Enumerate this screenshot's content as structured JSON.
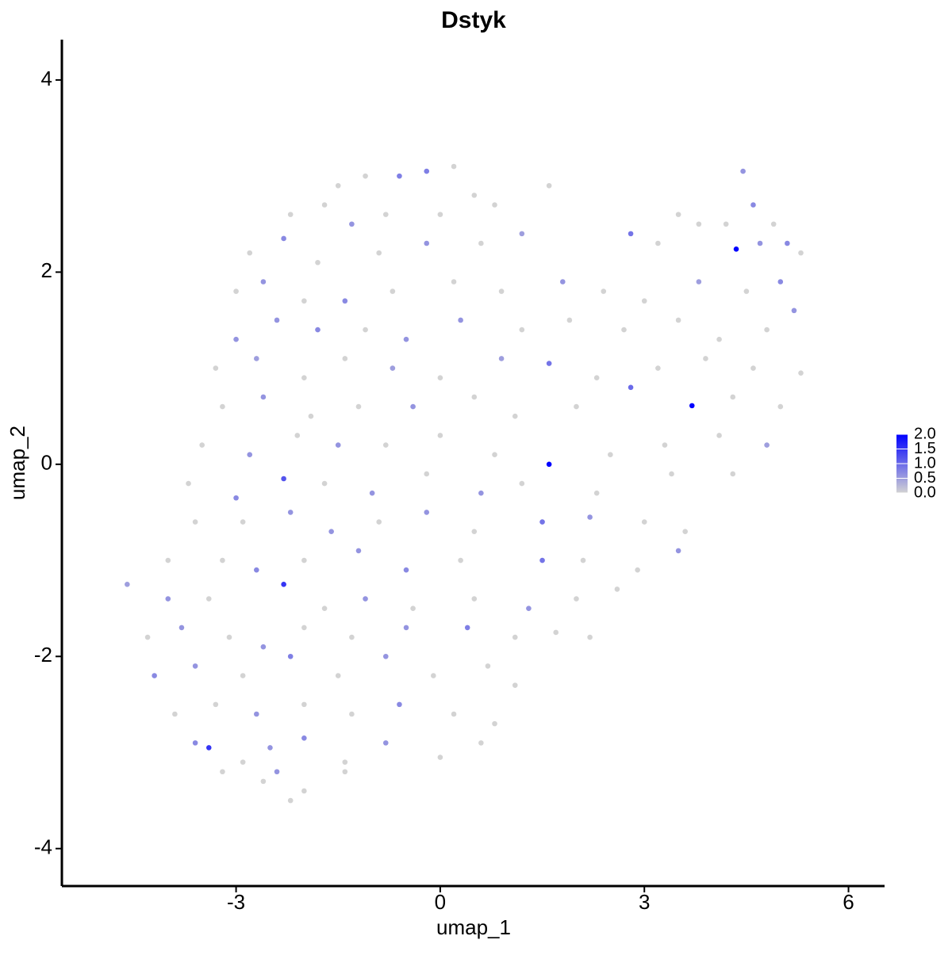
{
  "chart_data": {
    "type": "scatter",
    "title": "Dstyk",
    "x_label": "umap_1",
    "y_label": "umap_2",
    "xlim": [
      -5.56,
      6.53
    ],
    "ylim": [
      -4.39,
      4.42
    ],
    "xticks": [
      -3,
      0,
      3,
      6
    ],
    "yticks": [
      -4,
      -2,
      0,
      2,
      4
    ],
    "color_scale": {
      "low": "#d3d3d3",
      "high": "#0000ff",
      "limits": [
        0,
        2
      ],
      "ticks": [
        {
          "value": 0,
          "label": "0.0"
        },
        {
          "value": 0.5,
          "label": "0.5"
        },
        {
          "value": 1,
          "label": "1.0"
        },
        {
          "value": 1.5,
          "label": "1.5"
        },
        {
          "value": 2,
          "label": "2.0"
        }
      ]
    },
    "x": [
      -1.1,
      -0.6,
      -0.2,
      0.2,
      0.5,
      -1.5,
      4.45,
      -2.2,
      -1.7,
      -1.3,
      -0.8,
      0,
      0.8,
      1.6,
      3.5,
      4.2,
      4.6,
      4.9,
      -2.8,
      -2.3,
      -1.8,
      -0.9,
      -0.2,
      0.6,
      1.2,
      2.8,
      3.2,
      3.8,
      4.35,
      4.7,
      5.1,
      5.3,
      -3.0,
      -2.6,
      -2.0,
      -1.4,
      -0.7,
      0.2,
      0.9,
      1.8,
      2.4,
      3.0,
      3.8,
      4.5,
      5.0,
      -3.0,
      -2.4,
      -1.8,
      -1.1,
      -0.5,
      0.3,
      1.2,
      1.9,
      2.7,
      3.5,
      4.1,
      4.8,
      5.2,
      -3.3,
      -2.7,
      -2.0,
      -1.4,
      -0.7,
      0,
      0.9,
      1.6,
      2.3,
      3.2,
      3.9,
      4.6,
      5.3,
      -3.2,
      -2.6,
      -1.9,
      -1.2,
      -0.4,
      0.5,
      1.1,
      2.0,
      2.8,
      3.7,
      4.3,
      5.0,
      -3.5,
      -2.8,
      -2.1,
      -1.5,
      -0.8,
      0,
      0.8,
      1.6,
      2.5,
      3.3,
      4.1,
      4.8,
      -3.7,
      -3.0,
      -2.3,
      -1.7,
      -1.0,
      -0.2,
      0.6,
      1.2,
      2.3,
      3.4,
      4.3,
      -3.6,
      -2.9,
      -2.2,
      -1.6,
      -0.9,
      -0.2,
      0.5,
      1.5,
      2.2,
      3.0,
      3.6,
      -4.0,
      -3.2,
      -2.7,
      -2.0,
      -1.2,
      -0.5,
      0.3,
      1.5,
      2.1,
      2.9,
      3.5,
      -4.6,
      -4.0,
      -3.4,
      -2.3,
      -1.7,
      -1.1,
      -0.4,
      0.5,
      1.3,
      2.0,
      2.6,
      -4.3,
      -3.8,
      -3.1,
      -2.6,
      -2.0,
      -1.3,
      -0.5,
      0.4,
      1.1,
      1.7,
      2.2,
      -4.2,
      -3.6,
      -2.9,
      -2.2,
      -1.5,
      -0.8,
      -0.1,
      0.7,
      1.1,
      -3.9,
      -3.3,
      -2.7,
      -2.0,
      -1.3,
      -0.6,
      0.2,
      0.8,
      -3.6,
      -3.4,
      -2.9,
      -2.5,
      -2.0,
      -1.4,
      -0.8,
      0,
      0.6,
      -3.2,
      -2.6,
      -2.2,
      -2.0,
      -1.4,
      -2.4
    ],
    "y": [
      3.0,
      3.0,
      3.05,
      3.1,
      2.8,
      2.9,
      3.05,
      2.6,
      2.7,
      2.5,
      2.6,
      2.6,
      2.7,
      2.9,
      2.6,
      2.5,
      2.7,
      2.5,
      2.2,
      2.35,
      2.1,
      2.2,
      2.3,
      2.3,
      2.4,
      2.4,
      2.3,
      2.5,
      2.24,
      2.3,
      2.3,
      2.2,
      1.8,
      1.9,
      1.7,
      1.7,
      1.8,
      1.9,
      1.8,
      1.9,
      1.8,
      1.7,
      1.9,
      1.8,
      1.9,
      1.3,
      1.5,
      1.4,
      1.4,
      1.3,
      1.5,
      1.4,
      1.5,
      1.4,
      1.5,
      1.3,
      1.4,
      1.6,
      1.0,
      1.1,
      0.9,
      1.1,
      1.0,
      0.9,
      1.1,
      1.05,
      0.9,
      1.0,
      1.1,
      1.0,
      0.95,
      0.6,
      0.7,
      0.5,
      0.6,
      0.6,
      0.7,
      0.5,
      0.6,
      0.8,
      0.61,
      0.7,
      0.6,
      0.2,
      0.1,
      0.3,
      0.2,
      0.2,
      0.3,
      0.1,
      0.0,
      0.1,
      0.2,
      0.3,
      0.2,
      -0.2,
      -0.35,
      -0.15,
      -0.2,
      -0.3,
      -0.1,
      -0.3,
      -0.2,
      -0.3,
      -0.1,
      -0.1,
      -0.6,
      -0.6,
      -0.5,
      -0.7,
      -0.6,
      -0.5,
      -0.7,
      -0.6,
      -0.55,
      -0.6,
      -0.7,
      -1.0,
      -1.0,
      -1.1,
      -1.0,
      -0.9,
      -1.1,
      -1.0,
      -1.0,
      -1.0,
      -1.1,
      -0.9,
      -1.25,
      -1.4,
      -1.4,
      -1.25,
      -1.5,
      -1.4,
      -1.5,
      -1.4,
      -1.5,
      -1.4,
      -1.3,
      -1.8,
      -1.7,
      -1.8,
      -1.9,
      -1.7,
      -1.8,
      -1.7,
      -1.7,
      -1.8,
      -1.75,
      -1.8,
      -2.2,
      -2.1,
      -2.2,
      -2.0,
      -2.2,
      -2.0,
      -2.2,
      -2.1,
      -2.3,
      -2.6,
      -2.5,
      -2.6,
      -2.5,
      -2.6,
      -2.5,
      -2.6,
      -2.7,
      -2.9,
      -2.95,
      -3.1,
      -2.95,
      -2.85,
      -3.1,
      -2.9,
      -3.05,
      -2.9,
      -3.2,
      -3.3,
      -3.5,
      -3.4,
      -3.2,
      -3.2
    ],
    "values": [
      0,
      0.8,
      0.8,
      0,
      0,
      0,
      0.6,
      0,
      0,
      0.6,
      0,
      0,
      0,
      0,
      0,
      0,
      0.7,
      0,
      0,
      0.7,
      0,
      0,
      0.6,
      0,
      0.5,
      0.9,
      0,
      0,
      2.0,
      0.6,
      0.7,
      0,
      0,
      0.6,
      0,
      0.7,
      0,
      0,
      0,
      0.6,
      0,
      0,
      0.5,
      0,
      0.7,
      0.6,
      0.6,
      0.7,
      0,
      0.6,
      0.6,
      0,
      0,
      0,
      0,
      0,
      0,
      0.6,
      0,
      0.5,
      0,
      0,
      0.5,
      0,
      0.5,
      0.9,
      0,
      0,
      0,
      0,
      0,
      0,
      0.6,
      0,
      0,
      0.6,
      0,
      0,
      0,
      1.0,
      2.0,
      0,
      0,
      0,
      0.6,
      0,
      0.6,
      0,
      0,
      0,
      2.0,
      0,
      0,
      0,
      0.5,
      0,
      0.7,
      1.2,
      0,
      0.6,
      0,
      0.6,
      0,
      0,
      0,
      0,
      0,
      0,
      0.6,
      0.6,
      0,
      0.6,
      0,
      0.9,
      0.6,
      0,
      0,
      0,
      0,
      0.7,
      0,
      0.6,
      0.7,
      0,
      0.9,
      0,
      0,
      0.6,
      0.5,
      0.6,
      0,
      1.5,
      0,
      0.6,
      0,
      0,
      0.6,
      0,
      0,
      0,
      0.6,
      0,
      0.6,
      0,
      0,
      0.6,
      0.8,
      0,
      0,
      0,
      0.7,
      0.6,
      0,
      0.8,
      0,
      0.6,
      0,
      0,
      0,
      0,
      0,
      0.6,
      0,
      0,
      0.7,
      0,
      0,
      0.7,
      1.5,
      0,
      0.6,
      0.7,
      0,
      0.6,
      0,
      0,
      0,
      0,
      0,
      0,
      0,
      0.6
    ]
  }
}
